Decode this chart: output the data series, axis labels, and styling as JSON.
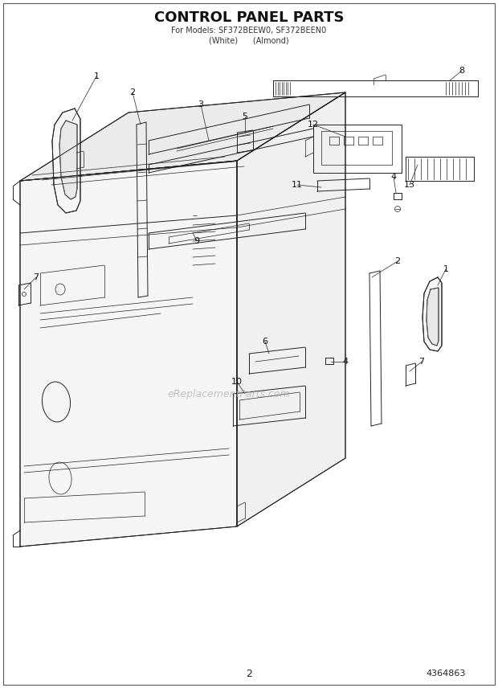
{
  "title": "CONTROL PANEL PARTS",
  "subtitle1": "For Models: SF372BEEW0, SF372BEEN0",
  "subtitle2": "(White)      (Almond)",
  "page_number": "2",
  "part_number": "4364863",
  "watermark": "eReplacementParts.com",
  "bg": "#ffffff",
  "lc": "#222222",
  "lw": 0.7,
  "thin": 0.5
}
